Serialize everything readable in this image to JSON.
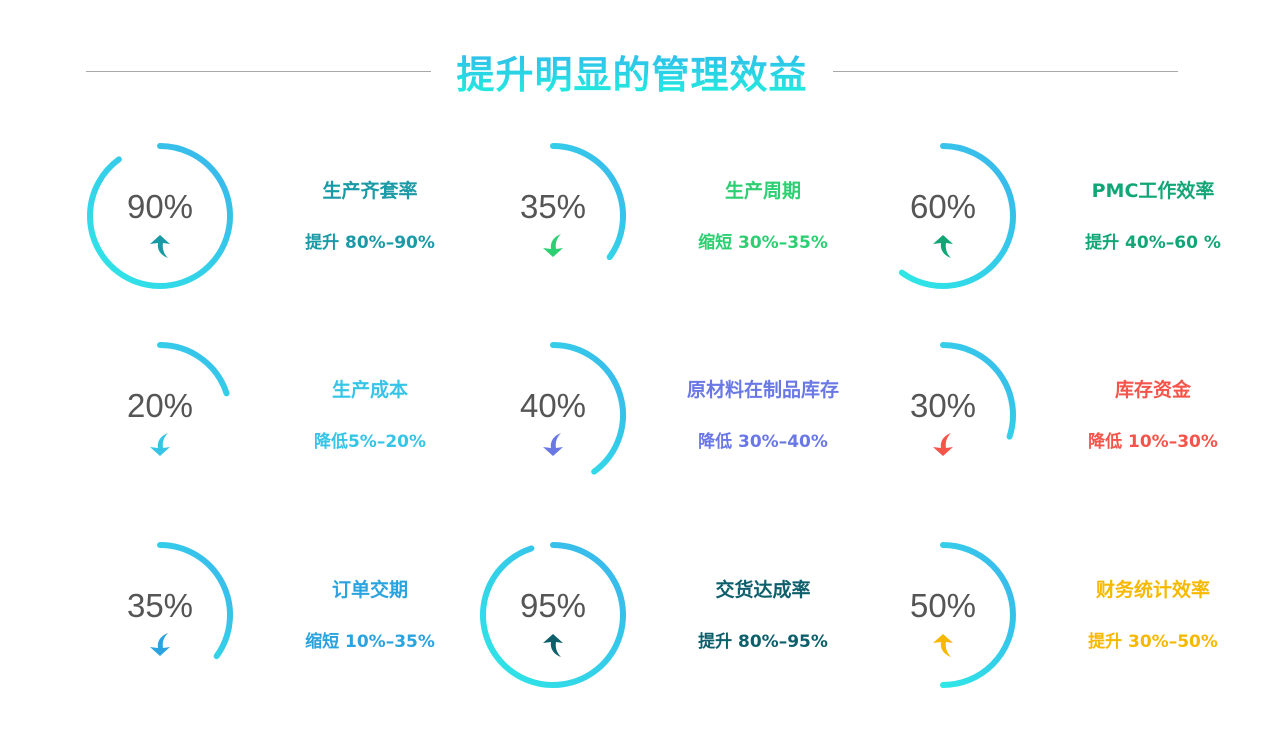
{
  "title": "提升明显的管理效益",
  "ring_gradient": [
    "#2ee8e6",
    "#3ab4ec"
  ],
  "items": [
    {
      "value": "90%",
      "fraction": 0.9,
      "label": "生产齐套率",
      "change": "提升 80%–90%",
      "direction": "up",
      "color": "#1a9aa6"
    },
    {
      "value": "35%",
      "fraction": 0.35,
      "label": "生产周期",
      "change": "缩短 30%–35%",
      "direction": "down",
      "color": "#2ccf72"
    },
    {
      "value": "60%",
      "fraction": 0.6,
      "label": "PMC工作效率",
      "change": "提升 40%–60 %",
      "direction": "up",
      "color": "#12a677"
    },
    {
      "value": "20%",
      "fraction": 0.2,
      "label": "生产成本",
      "change": "降低5%–20%",
      "direction": "down",
      "color": "#36c5e6"
    },
    {
      "value": "40%",
      "fraction": 0.4,
      "label": "原材料在制品库存",
      "change": "降低 30%–40%",
      "direction": "down",
      "color": "#6a78e6"
    },
    {
      "value": "30%",
      "fraction": 0.3,
      "label": "库存资金",
      "change": "降低 10%–30%",
      "direction": "down",
      "color": "#f5544a"
    },
    {
      "value": "35%",
      "fraction": 0.35,
      "label": "订单交期",
      "change": "缩短 10%–35%",
      "direction": "down",
      "color": "#2aa3df"
    },
    {
      "value": "95%",
      "fraction": 0.95,
      "label": "交货达成率",
      "change": "提升 80%–95%",
      "direction": "up",
      "color": "#0d5f6c"
    },
    {
      "value": "50%",
      "fraction": 0.5,
      "label": "财务统计效率",
      "change": "提升 30%–50%",
      "direction": "up",
      "color": "#f7b800"
    }
  ]
}
